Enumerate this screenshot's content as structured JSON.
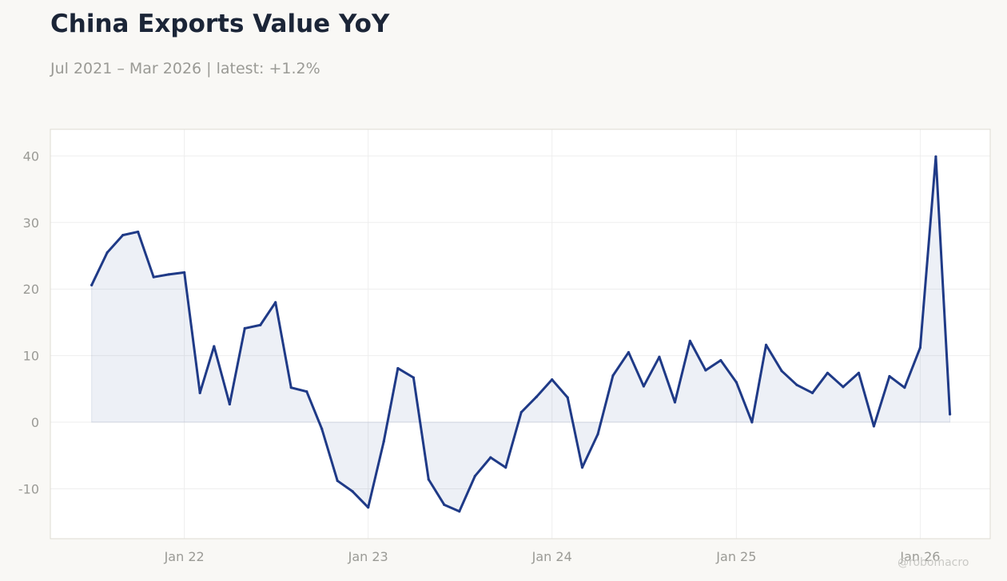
{
  "title": "China Exports Value YoY",
  "subtitle": "Jul 2021 – Mar 2026 | latest: +1.2%",
  "watermark": "@robomacro",
  "colors": {
    "background": "#f9f8f5",
    "line": "#1f3a87",
    "fill": "#1f3a87",
    "grid": "#eeeeee",
    "axis_border": "#dedbd2",
    "tick_text": "#9a9a95"
  },
  "chart_data": {
    "type": "area",
    "title": "China Exports Value YoY",
    "xlabel": "",
    "ylabel": "",
    "ylim": [
      -17.5,
      44
    ],
    "xlim": [
      "2021-04-10",
      "2026-05-20"
    ],
    "grid": true,
    "x_ticks": [
      {
        "date": "2022-01-01",
        "label": "Jan 22"
      },
      {
        "date": "2023-01-01",
        "label": "Jan 23"
      },
      {
        "date": "2024-01-01",
        "label": "Jan 24"
      },
      {
        "date": "2025-01-01",
        "label": "Jan 25"
      },
      {
        "date": "2026-01-01",
        "label": "Jan 26"
      }
    ],
    "y_ticks": [
      {
        "value": 40,
        "label": "40"
      },
      {
        "value": 30,
        "label": "30"
      },
      {
        "value": 20,
        "label": "20"
      },
      {
        "value": 10,
        "label": "10"
      },
      {
        "value": 0,
        "label": "0"
      },
      {
        "value": -10,
        "label": "-10"
      }
    ],
    "series": [
      {
        "x": [
          "2021-07-01",
          "2021-08-01",
          "2021-09-01",
          "2021-10-01",
          "2021-11-01",
          "2021-12-01",
          "2022-01-01",
          "2022-02-01",
          "2022-03-01",
          "2022-04-01",
          "2022-05-01",
          "2022-06-01",
          "2022-07-01",
          "2022-08-01",
          "2022-09-01",
          "2022-10-01",
          "2022-11-01",
          "2022-12-01",
          "2023-01-01",
          "2023-02-01",
          "2023-03-01",
          "2023-04-01",
          "2023-05-01",
          "2023-06-01",
          "2023-07-01",
          "2023-08-01",
          "2023-09-01",
          "2023-10-01",
          "2023-11-01",
          "2023-12-01",
          "2024-01-01",
          "2024-02-01",
          "2024-03-01",
          "2024-04-01",
          "2024-05-01",
          "2024-06-01",
          "2024-07-01",
          "2024-08-01",
          "2024-09-01",
          "2024-10-01",
          "2024-11-01",
          "2024-12-01",
          "2025-01-01",
          "2025-02-01",
          "2025-03-01",
          "2025-04-01",
          "2025-05-01",
          "2025-06-01",
          "2025-07-01",
          "2025-08-01",
          "2025-09-01",
          "2025-10-01",
          "2025-11-01",
          "2025-12-01",
          "2026-01-01",
          "2026-02-01",
          "2026-03-01"
        ],
        "y": [
          20.6,
          25.5,
          28.1,
          28.6,
          21.8,
          22.2,
          22.5,
          4.4,
          11.4,
          2.7,
          14.1,
          14.6,
          18.0,
          5.2,
          4.6,
          -1.0,
          -8.8,
          -10.4,
          -12.8,
          -2.9,
          8.1,
          6.7,
          -8.6,
          -12.4,
          -13.4,
          -8.1,
          -5.3,
          -6.8,
          1.5,
          3.8,
          6.4,
          3.7,
          -6.8,
          -1.8,
          7.0,
          10.5,
          5.4,
          9.8,
          3.0,
          12.2,
          7.8,
          9.3,
          6.0,
          0.0,
          11.6,
          7.7,
          5.6,
          4.4,
          7.4,
          5.3,
          7.4,
          -0.6,
          6.9,
          5.2,
          11.2,
          39.9,
          1.2
        ]
      }
    ]
  }
}
